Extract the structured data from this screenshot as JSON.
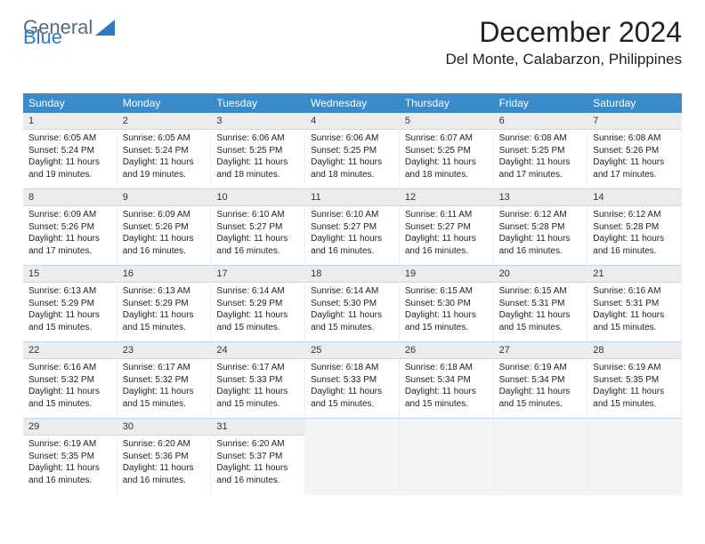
{
  "logo": {
    "text1": "General",
    "text2": "Blue"
  },
  "title": "December 2024",
  "location": "Del Monte, Calabarzon, Philippines",
  "colors": {
    "header_bg": "#3b8bc9",
    "header_text": "#ffffff",
    "daynum_bg": "#ececec",
    "cell_border": "#c7d6e4",
    "logo_gray": "#5a6a7a",
    "logo_blue": "#2f7bbf",
    "background": "#ffffff"
  },
  "day_names": [
    "Sunday",
    "Monday",
    "Tuesday",
    "Wednesday",
    "Thursday",
    "Friday",
    "Saturday"
  ],
  "days": [
    {
      "n": "1",
      "sunrise": "Sunrise: 6:05 AM",
      "sunset": "Sunset: 5:24 PM",
      "day1": "Daylight: 11 hours",
      "day2": "and 19 minutes."
    },
    {
      "n": "2",
      "sunrise": "Sunrise: 6:05 AM",
      "sunset": "Sunset: 5:24 PM",
      "day1": "Daylight: 11 hours",
      "day2": "and 19 minutes."
    },
    {
      "n": "3",
      "sunrise": "Sunrise: 6:06 AM",
      "sunset": "Sunset: 5:25 PM",
      "day1": "Daylight: 11 hours",
      "day2": "and 18 minutes."
    },
    {
      "n": "4",
      "sunrise": "Sunrise: 6:06 AM",
      "sunset": "Sunset: 5:25 PM",
      "day1": "Daylight: 11 hours",
      "day2": "and 18 minutes."
    },
    {
      "n": "5",
      "sunrise": "Sunrise: 6:07 AM",
      "sunset": "Sunset: 5:25 PM",
      "day1": "Daylight: 11 hours",
      "day2": "and 18 minutes."
    },
    {
      "n": "6",
      "sunrise": "Sunrise: 6:08 AM",
      "sunset": "Sunset: 5:25 PM",
      "day1": "Daylight: 11 hours",
      "day2": "and 17 minutes."
    },
    {
      "n": "7",
      "sunrise": "Sunrise: 6:08 AM",
      "sunset": "Sunset: 5:26 PM",
      "day1": "Daylight: 11 hours",
      "day2": "and 17 minutes."
    },
    {
      "n": "8",
      "sunrise": "Sunrise: 6:09 AM",
      "sunset": "Sunset: 5:26 PM",
      "day1": "Daylight: 11 hours",
      "day2": "and 17 minutes."
    },
    {
      "n": "9",
      "sunrise": "Sunrise: 6:09 AM",
      "sunset": "Sunset: 5:26 PM",
      "day1": "Daylight: 11 hours",
      "day2": "and 16 minutes."
    },
    {
      "n": "10",
      "sunrise": "Sunrise: 6:10 AM",
      "sunset": "Sunset: 5:27 PM",
      "day1": "Daylight: 11 hours",
      "day2": "and 16 minutes."
    },
    {
      "n": "11",
      "sunrise": "Sunrise: 6:10 AM",
      "sunset": "Sunset: 5:27 PM",
      "day1": "Daylight: 11 hours",
      "day2": "and 16 minutes."
    },
    {
      "n": "12",
      "sunrise": "Sunrise: 6:11 AM",
      "sunset": "Sunset: 5:27 PM",
      "day1": "Daylight: 11 hours",
      "day2": "and 16 minutes."
    },
    {
      "n": "13",
      "sunrise": "Sunrise: 6:12 AM",
      "sunset": "Sunset: 5:28 PM",
      "day1": "Daylight: 11 hours",
      "day2": "and 16 minutes."
    },
    {
      "n": "14",
      "sunrise": "Sunrise: 6:12 AM",
      "sunset": "Sunset: 5:28 PM",
      "day1": "Daylight: 11 hours",
      "day2": "and 16 minutes."
    },
    {
      "n": "15",
      "sunrise": "Sunrise: 6:13 AM",
      "sunset": "Sunset: 5:29 PM",
      "day1": "Daylight: 11 hours",
      "day2": "and 15 minutes."
    },
    {
      "n": "16",
      "sunrise": "Sunrise: 6:13 AM",
      "sunset": "Sunset: 5:29 PM",
      "day1": "Daylight: 11 hours",
      "day2": "and 15 minutes."
    },
    {
      "n": "17",
      "sunrise": "Sunrise: 6:14 AM",
      "sunset": "Sunset: 5:29 PM",
      "day1": "Daylight: 11 hours",
      "day2": "and 15 minutes."
    },
    {
      "n": "18",
      "sunrise": "Sunrise: 6:14 AM",
      "sunset": "Sunset: 5:30 PM",
      "day1": "Daylight: 11 hours",
      "day2": "and 15 minutes."
    },
    {
      "n": "19",
      "sunrise": "Sunrise: 6:15 AM",
      "sunset": "Sunset: 5:30 PM",
      "day1": "Daylight: 11 hours",
      "day2": "and 15 minutes."
    },
    {
      "n": "20",
      "sunrise": "Sunrise: 6:15 AM",
      "sunset": "Sunset: 5:31 PM",
      "day1": "Daylight: 11 hours",
      "day2": "and 15 minutes."
    },
    {
      "n": "21",
      "sunrise": "Sunrise: 6:16 AM",
      "sunset": "Sunset: 5:31 PM",
      "day1": "Daylight: 11 hours",
      "day2": "and 15 minutes."
    },
    {
      "n": "22",
      "sunrise": "Sunrise: 6:16 AM",
      "sunset": "Sunset: 5:32 PM",
      "day1": "Daylight: 11 hours",
      "day2": "and 15 minutes."
    },
    {
      "n": "23",
      "sunrise": "Sunrise: 6:17 AM",
      "sunset": "Sunset: 5:32 PM",
      "day1": "Daylight: 11 hours",
      "day2": "and 15 minutes."
    },
    {
      "n": "24",
      "sunrise": "Sunrise: 6:17 AM",
      "sunset": "Sunset: 5:33 PM",
      "day1": "Daylight: 11 hours",
      "day2": "and 15 minutes."
    },
    {
      "n": "25",
      "sunrise": "Sunrise: 6:18 AM",
      "sunset": "Sunset: 5:33 PM",
      "day1": "Daylight: 11 hours",
      "day2": "and 15 minutes."
    },
    {
      "n": "26",
      "sunrise": "Sunrise: 6:18 AM",
      "sunset": "Sunset: 5:34 PM",
      "day1": "Daylight: 11 hours",
      "day2": "and 15 minutes."
    },
    {
      "n": "27",
      "sunrise": "Sunrise: 6:19 AM",
      "sunset": "Sunset: 5:34 PM",
      "day1": "Daylight: 11 hours",
      "day2": "and 15 minutes."
    },
    {
      "n": "28",
      "sunrise": "Sunrise: 6:19 AM",
      "sunset": "Sunset: 5:35 PM",
      "day1": "Daylight: 11 hours",
      "day2": "and 15 minutes."
    },
    {
      "n": "29",
      "sunrise": "Sunrise: 6:19 AM",
      "sunset": "Sunset: 5:35 PM",
      "day1": "Daylight: 11 hours",
      "day2": "and 16 minutes."
    },
    {
      "n": "30",
      "sunrise": "Sunrise: 6:20 AM",
      "sunset": "Sunset: 5:36 PM",
      "day1": "Daylight: 11 hours",
      "day2": "and 16 minutes."
    },
    {
      "n": "31",
      "sunrise": "Sunrise: 6:20 AM",
      "sunset": "Sunset: 5:37 PM",
      "day1": "Daylight: 11 hours",
      "day2": "and 16 minutes."
    }
  ]
}
